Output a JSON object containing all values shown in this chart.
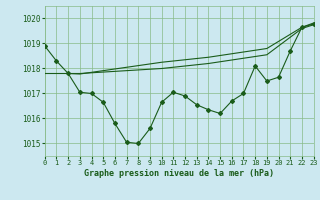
{
  "bg_color": "#cce8f0",
  "grid_color": "#88bb88",
  "line_color": "#1a5c1a",
  "xlabel": "Graphe pression niveau de la mer (hPa)",
  "ylim": [
    1014.5,
    1020.5
  ],
  "xlim": [
    0,
    23
  ],
  "yticks": [
    1015,
    1016,
    1017,
    1018,
    1019,
    1020
  ],
  "xticks": [
    0,
    1,
    2,
    3,
    4,
    5,
    6,
    7,
    8,
    9,
    10,
    11,
    12,
    13,
    14,
    15,
    16,
    17,
    18,
    19,
    20,
    21,
    22,
    23
  ],
  "series1_x": [
    0,
    1,
    2,
    3,
    4,
    5,
    6,
    7,
    8,
    9,
    10,
    11,
    12,
    13,
    14,
    15,
    16,
    17,
    18,
    19,
    20,
    21,
    22,
    23
  ],
  "series1_y": [
    1018.9,
    1018.3,
    1017.8,
    1017.05,
    1017.0,
    1016.65,
    1015.8,
    1015.05,
    1015.0,
    1015.6,
    1016.65,
    1017.05,
    1016.9,
    1016.55,
    1016.35,
    1016.2,
    1016.7,
    1017.0,
    1018.1,
    1017.5,
    1017.65,
    1018.7,
    1019.65,
    1019.78
  ],
  "series2_x": [
    0,
    2,
    3,
    10,
    14,
    19,
    22,
    23
  ],
  "series2_y": [
    1017.8,
    1017.8,
    1017.78,
    1018.25,
    1018.45,
    1018.8,
    1019.65,
    1019.82
  ],
  "series3_x": [
    2,
    3,
    10,
    14,
    19,
    22,
    23
  ],
  "series3_y": [
    1017.8,
    1017.8,
    1018.0,
    1018.2,
    1018.55,
    1019.6,
    1019.75
  ]
}
